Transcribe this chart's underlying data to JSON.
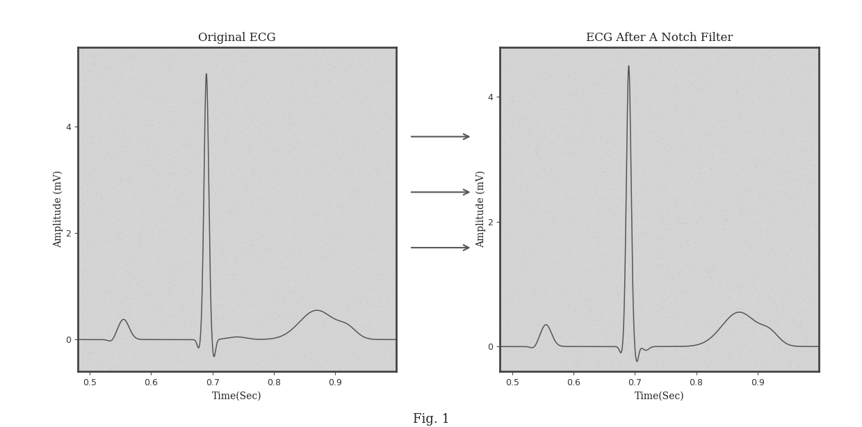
{
  "title1": "Original ECG",
  "title2": "ECG After A Notch Filter",
  "xlabel": "Time(Sec)",
  "ylabel": "Amplitude (mV)",
  "xlim": [
    0.48,
    1.0
  ],
  "ylim_left": [
    -0.6,
    5.5
  ],
  "ylim_right": [
    -0.4,
    4.8
  ],
  "yticks_left": [
    0,
    2,
    4
  ],
  "yticks_right": [
    0,
    2,
    4
  ],
  "xticks": [
    0.5,
    0.6,
    0.7,
    0.8,
    0.9
  ],
  "line_color": "#555555",
  "bg_color": "#d4d4d4",
  "fig_color": "#ffffff",
  "arrow_color": "#555555",
  "fig_label": "Fig. 1",
  "spine_color": "#444444",
  "tick_color": "#333333"
}
